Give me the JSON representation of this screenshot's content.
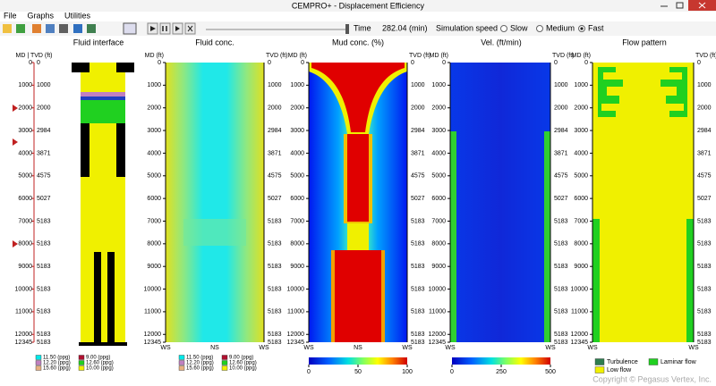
{
  "window": {
    "title": "CEMPRO+ - Displacement Efficiency",
    "copyright": "Copyright © Pegasus Vertex, Inc."
  },
  "menu": [
    "File",
    "Graphs",
    "Utilities"
  ],
  "toolbar": {
    "time_label": "Time",
    "time_value": "282.04 (min)",
    "speed_label": "Simulation speed",
    "speeds": [
      "Slow",
      "Medium",
      "Fast"
    ],
    "selected_speed": "Fast"
  },
  "depth": {
    "md_label": "MD (ft)",
    "tvd_label": "TVD (ft)",
    "md_tvd_label": "MD | TVD (ft)",
    "md_ticks": [
      0,
      1000,
      2000,
      3000,
      4000,
      5000,
      6000,
      7000,
      8000,
      9000,
      10000,
      11000,
      12000,
      12345
    ],
    "tvd_ticks": [
      0,
      1000,
      2000,
      2984,
      3871,
      4575,
      5027,
      5183,
      5183,
      5183,
      5183,
      5183,
      5183,
      5183
    ]
  },
  "panels": [
    {
      "title": "Fluid interface"
    },
    {
      "title": "Fluid conc.",
      "x_labels": [
        "WS",
        "NS",
        "WS"
      ]
    },
    {
      "title": "Mud conc. (%)",
      "x_labels": [
        "WS",
        "NS",
        "WS"
      ],
      "colorbar_ticks": [
        0,
        50,
        100
      ]
    },
    {
      "title": "Vel. (ft/min)",
      "x_labels": [
        "WS",
        "WS"
      ],
      "colorbar_ticks": [
        0,
        250,
        500
      ]
    },
    {
      "title": "Flow pattern",
      "x_labels": [
        "WS",
        "WS"
      ]
    }
  ],
  "fluid_legend": [
    {
      "label": "11.50 (ppg)",
      "color": "#00e8e8"
    },
    {
      "label": "9.00 (ppg)",
      "color": "#b01030"
    },
    {
      "label": "12.20 (ppg)",
      "color": "#c080c0"
    },
    {
      "label": "12.60 (ppg)",
      "color": "#20d020"
    },
    {
      "label": "15.60 (ppg)",
      "color": "#e8b080"
    },
    {
      "label": "10.00 (ppg)",
      "color": "#f0f000"
    }
  ],
  "flow_legend": [
    {
      "label": "Turbulence",
      "color": "#2e7d4f"
    },
    {
      "label": "Laminar flow",
      "color": "#20d020"
    },
    {
      "label": "Low flow",
      "color": "#f0f000"
    }
  ]
}
